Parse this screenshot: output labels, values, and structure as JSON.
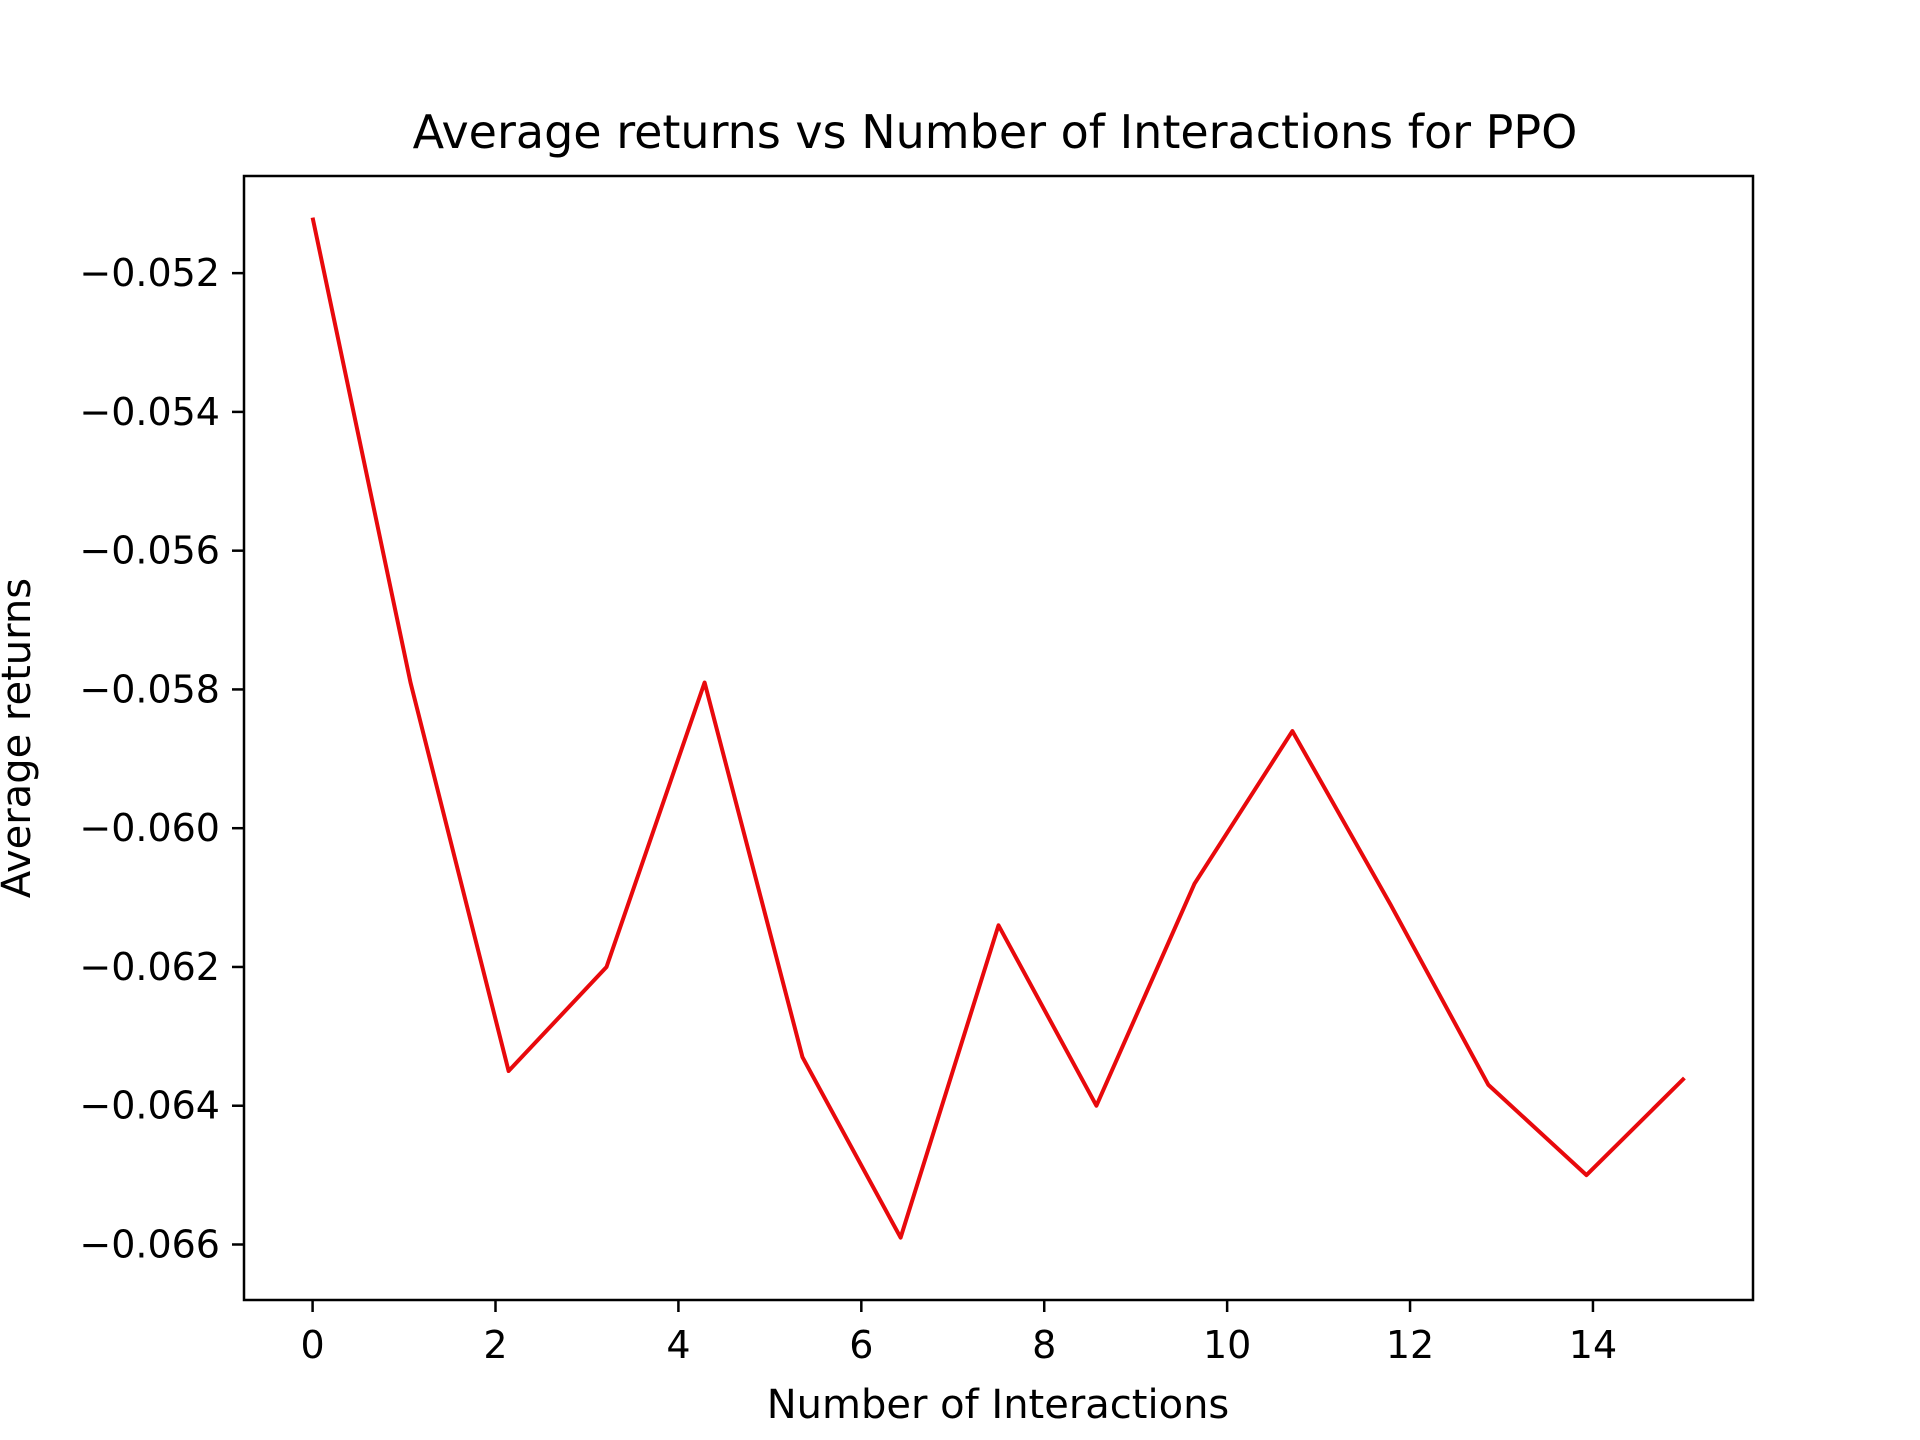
{
  "chart_data": {
    "type": "line",
    "title": "Average returns vs Number of Interactions for PPO",
    "xlabel": "Number of Interactions",
    "ylabel": "Average returns",
    "xlim": [
      -0.75,
      15.75
    ],
    "ylim": [
      -0.0668,
      -0.0506
    ],
    "grid": false,
    "x_ticks": [
      {
        "value": 0,
        "label": "0"
      },
      {
        "value": 2,
        "label": "2"
      },
      {
        "value": 4,
        "label": "4"
      },
      {
        "value": 6,
        "label": "6"
      },
      {
        "value": 8,
        "label": "8"
      },
      {
        "value": 10,
        "label": "10"
      },
      {
        "value": 12,
        "label": "12"
      },
      {
        "value": 14,
        "label": "14"
      }
    ],
    "y_ticks": [
      {
        "value": -0.052,
        "label": "−0.052"
      },
      {
        "value": -0.054,
        "label": "−0.054"
      },
      {
        "value": -0.056,
        "label": "−0.056"
      },
      {
        "value": -0.058,
        "label": "−0.058"
      },
      {
        "value": -0.06,
        "label": "−0.060"
      },
      {
        "value": -0.062,
        "label": "−0.062"
      },
      {
        "value": -0.064,
        "label": "−0.064"
      },
      {
        "value": -0.066,
        "label": "−0.066"
      }
    ],
    "series": [
      {
        "color": "#e8090c",
        "x": [
          0,
          1.071,
          2.143,
          3.214,
          4.286,
          5.357,
          6.429,
          7.5,
          8.571,
          9.643,
          10.714,
          11.786,
          12.857,
          13.929,
          15
        ],
        "y": [
          -0.0512,
          -0.0579,
          -0.0635,
          -0.062,
          -0.0579,
          -0.0633,
          -0.0659,
          -0.0614,
          -0.064,
          -0.0608,
          -0.0586,
          -0.0611,
          -0.0637,
          -0.065,
          -0.0636
        ]
      }
    ]
  }
}
